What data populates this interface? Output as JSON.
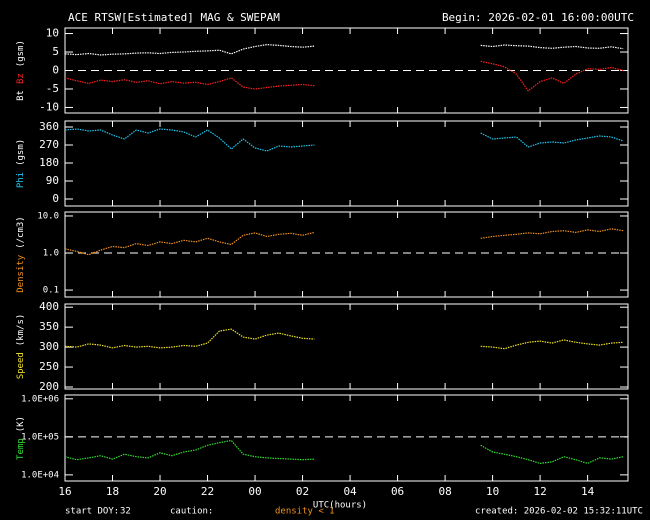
{
  "header": {
    "title": "ACE RTSW[Estimated] MAG & SWEPAM",
    "begin": "Begin: 2026-02-01 16:00:00UTC"
  },
  "footer": {
    "start_label": "start DOY:",
    "start_doy": "32",
    "caution_label": "caution:",
    "caution": "density < 1",
    "created": "created: 2026-02-02 15:32:11UTC"
  },
  "chart_data": [
    {
      "type": "scatter",
      "ylabel": "(gsm)",
      "xlim": [
        16,
        39.7
      ],
      "ylim": [
        -11.5,
        11.5
      ],
      "yticks": [
        10,
        5,
        0,
        -5,
        -10
      ],
      "ref_line": 0,
      "x": [
        16,
        16.5,
        17,
        17.5,
        18,
        18.5,
        19,
        19.5,
        20,
        20.5,
        21,
        21.5,
        22,
        22.5,
        23,
        23.5,
        24,
        24.5,
        25,
        25.5,
        26,
        26.5,
        27,
        27.5,
        28,
        28.5,
        29,
        29.5,
        30,
        30.5,
        31,
        31.5,
        32,
        32.5,
        33,
        33.5,
        34,
        34.5,
        35,
        35.5,
        36,
        36.5,
        37,
        37.5,
        38,
        38.5,
        39,
        39.5
      ],
      "series": [
        {
          "name": "Bt",
          "color": "#ffffff",
          "values": [
            4.5,
            4.3,
            4.6,
            4.2,
            4.4,
            4.5,
            4.7,
            4.8,
            4.6,
            4.9,
            5.0,
            5.2,
            5.3,
            5.5,
            4.5,
            5.8,
            6.5,
            7.0,
            6.8,
            6.5,
            6.3,
            6.6,
            null,
            null,
            null,
            null,
            null,
            null,
            null,
            null,
            null,
            null,
            null,
            null,
            null,
            6.8,
            6.5,
            6.9,
            6.7,
            6.6,
            6.2,
            6.0,
            6.3,
            6.5,
            6.1,
            6.0,
            6.4,
            5.9
          ]
        },
        {
          "name": "Bz",
          "color": "#ff2020",
          "values": [
            -2.0,
            -2.8,
            -3.5,
            -2.6,
            -3.0,
            -2.5,
            -3.2,
            -2.8,
            -3.6,
            -3.0,
            -3.4,
            -3.2,
            -3.8,
            -3.0,
            -2.0,
            -4.5,
            -5.0,
            -4.6,
            -4.2,
            -4.0,
            -3.8,
            -4.1,
            null,
            null,
            null,
            null,
            null,
            null,
            null,
            null,
            null,
            null,
            null,
            null,
            null,
            2.5,
            1.8,
            1.0,
            -1.0,
            -5.5,
            -3.0,
            -2.0,
            -3.5,
            -1.0,
            0.5,
            0.3,
            0.8,
            0.0
          ]
        }
      ]
    },
    {
      "type": "scatter",
      "ylabel": "(gsm)",
      "xlim": [
        16,
        39.7
      ],
      "ylim": [
        -35,
        390
      ],
      "yticks": [
        360,
        270,
        180,
        90,
        0
      ],
      "x": [
        16,
        16.5,
        17,
        17.5,
        18,
        18.5,
        19,
        19.5,
        20,
        20.5,
        21,
        21.5,
        22,
        22.5,
        23,
        23.5,
        24,
        24.5,
        25,
        25.5,
        26,
        26.5,
        27,
        27.5,
        28,
        28.5,
        29,
        29.5,
        30,
        30.5,
        31,
        31.5,
        32,
        32.5,
        33,
        33.5,
        34,
        34.5,
        35,
        35.5,
        36,
        36.5,
        37,
        37.5,
        38,
        38.5,
        39,
        39.5
      ],
      "series": [
        {
          "name": "Phi",
          "color": "#20c8f0",
          "values": [
            345,
            350,
            340,
            345,
            320,
            300,
            345,
            330,
            350,
            345,
            335,
            310,
            345,
            305,
            250,
            300,
            255,
            240,
            265,
            260,
            265,
            270,
            null,
            null,
            null,
            null,
            null,
            null,
            null,
            null,
            null,
            null,
            null,
            null,
            null,
            330,
            300,
            305,
            310,
            260,
            280,
            285,
            280,
            295,
            305,
            315,
            310,
            290
          ]
        }
      ]
    },
    {
      "type": "scatter",
      "ylabel": "(/cm3)",
      "log": true,
      "xlim": [
        16,
        39.7
      ],
      "ylim": [
        0.065,
        12.8
      ],
      "yticks": [
        {
          "value": 10,
          "label": "10.0"
        },
        {
          "value": 1,
          "label": "1.0"
        },
        0.1
      ],
      "ref_line": 1,
      "x": [
        16,
        16.5,
        17,
        17.5,
        18,
        18.5,
        19,
        19.5,
        20,
        20.5,
        21,
        21.5,
        22,
        22.5,
        23,
        23.5,
        24,
        24.5,
        25,
        25.5,
        26,
        26.5,
        27,
        27.5,
        28,
        28.5,
        29,
        29.5,
        30,
        30.5,
        31,
        31.5,
        32,
        32.5,
        33,
        33.5,
        34,
        34.5,
        35,
        35.5,
        36,
        36.5,
        37,
        37.5,
        38,
        38.5,
        39,
        39.5
      ],
      "series": [
        {
          "name": "Density",
          "color": "#f09020",
          "values": [
            1.3,
            1.1,
            0.9,
            1.2,
            1.5,
            1.4,
            1.8,
            1.6,
            2.0,
            1.8,
            2.2,
            2.0,
            2.5,
            2.0,
            1.7,
            3.0,
            3.5,
            2.8,
            3.2,
            3.4,
            3.0,
            3.6,
            null,
            null,
            null,
            null,
            null,
            null,
            null,
            null,
            null,
            null,
            null,
            null,
            null,
            2.5,
            2.8,
            3.0,
            3.2,
            3.5,
            3.3,
            3.8,
            4.0,
            3.6,
            4.2,
            3.8,
            4.5,
            4.0
          ]
        }
      ]
    },
    {
      "type": "scatter",
      "ylabel": "(km/s)",
      "xlim": [
        16,
        39.7
      ],
      "ylim": [
        195,
        408
      ],
      "yticks": [
        400,
        350,
        300,
        250,
        200
      ],
      "x": [
        16,
        16.5,
        17,
        17.5,
        18,
        18.5,
        19,
        19.5,
        20,
        20.5,
        21,
        21.5,
        22,
        22.5,
        23,
        23.5,
        24,
        24.5,
        25,
        25.5,
        26,
        26.5,
        27,
        27.5,
        28,
        28.5,
        29,
        29.5,
        30,
        30.5,
        31,
        31.5,
        32,
        32.5,
        33,
        33.5,
        34,
        34.5,
        35,
        35.5,
        36,
        36.5,
        37,
        37.5,
        38,
        38.5,
        39,
        39.5
      ],
      "series": [
        {
          "name": "Speed",
          "color": "#f0e020",
          "values": [
            302,
            300,
            308,
            305,
            298,
            304,
            300,
            302,
            298,
            300,
            304,
            302,
            310,
            340,
            345,
            325,
            320,
            330,
            335,
            328,
            322,
            320,
            null,
            null,
            null,
            null,
            null,
            null,
            null,
            null,
            null,
            null,
            null,
            null,
            null,
            302,
            300,
            296,
            305,
            312,
            315,
            310,
            318,
            312,
            308,
            305,
            310,
            312
          ]
        }
      ]
    },
    {
      "type": "scatter",
      "ylabel": "(K)",
      "log": true,
      "xlim": [
        16,
        39.7
      ],
      "ylim": [
        6900,
        1260000
      ],
      "yticks": [
        {
          "value": 1000000,
          "label": "1.0E+06"
        },
        {
          "value": 100000,
          "label": "1.0E+05"
        },
        {
          "value": 10000,
          "label": "1.0E+04"
        }
      ],
      "ref_line": 100000,
      "xlabel": "UTC(hours)",
      "xticks": [
        16,
        18,
        20,
        22,
        {
          "value": 24,
          "label": "00"
        },
        {
          "value": 26,
          "label": "02"
        },
        {
          "value": 28,
          "label": "04"
        },
        {
          "value": 30,
          "label": "06"
        },
        {
          "value": 32,
          "label": "08"
        },
        {
          "value": 34,
          "label": "10"
        },
        {
          "value": 36,
          "label": "12"
        },
        {
          "value": 38,
          "label": "14"
        }
      ],
      "x": [
        16,
        16.5,
        17,
        17.5,
        18,
        18.5,
        19,
        19.5,
        20,
        20.5,
        21,
        21.5,
        22,
        22.5,
        23,
        23.5,
        24,
        24.5,
        25,
        25.5,
        26,
        26.5,
        27,
        27.5,
        28,
        28.5,
        29,
        29.5,
        30,
        30.5,
        31,
        31.5,
        32,
        32.5,
        33,
        33.5,
        34,
        34.5,
        35,
        35.5,
        36,
        36.5,
        37,
        37.5,
        38,
        38.5,
        39,
        39.5
      ],
      "series": [
        {
          "name": "Temp",
          "color": "#30e030",
          "values": [
            30000,
            25000,
            28000,
            32000,
            26000,
            35000,
            30000,
            28000,
            38000,
            32000,
            40000,
            45000,
            60000,
            70000,
            80000,
            35000,
            30000,
            28000,
            27000,
            26000,
            25000,
            26000,
            null,
            null,
            null,
            null,
            null,
            null,
            null,
            null,
            null,
            null,
            null,
            null,
            null,
            60000,
            40000,
            35000,
            30000,
            25000,
            20000,
            22000,
            30000,
            25000,
            20000,
            28000,
            26000,
            30000
          ]
        }
      ]
    }
  ]
}
